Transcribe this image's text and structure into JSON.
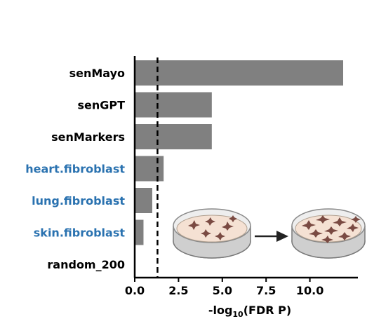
{
  "chart_data": {
    "type": "bar",
    "orientation": "horizontal",
    "categories": [
      "senMayo",
      "senGPT",
      "senMarkers",
      "heart.fibroblast",
      "lung.fibroblast",
      "skin.fibroblast",
      "random_200"
    ],
    "values": [
      11.9,
      4.4,
      4.4,
      1.65,
      1.0,
      0.5,
      0.0
    ],
    "category_colors": [
      "#000000",
      "#000000",
      "#000000",
      "#2a72b0",
      "#2a72b0",
      "#2a72b0",
      "#000000"
    ],
    "bar_color": "#808080",
    "xlim": [
      0,
      12.5
    ],
    "xticks": [
      0,
      2.5,
      5,
      7.5,
      10
    ],
    "xtick_labels": [
      "0.0",
      "2.5",
      "5.0",
      "7.5",
      "10.0"
    ],
    "xlabel": {
      "prefix": "-log",
      "subscript": "10",
      "suffix": "(FDR P)"
    },
    "threshold_line": 1.3,
    "grid": false,
    "inset_illustration": "cell-culture-dishes-senescence"
  }
}
